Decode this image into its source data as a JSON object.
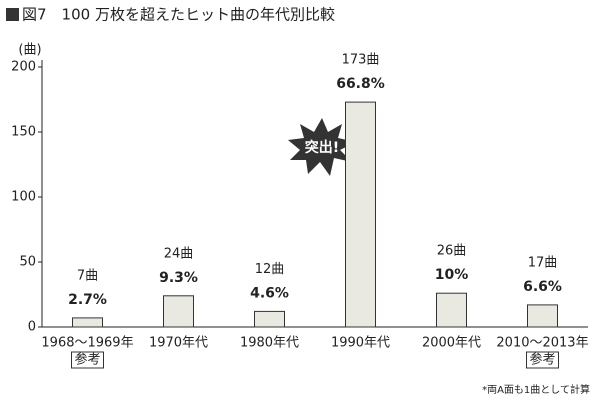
{
  "chart_data": {
    "type": "bar",
    "title": "図7　100 万枚を超えたヒット曲の年代別比較",
    "y_label": "(曲)",
    "categories": [
      "1968〜1969年",
      "1970年代",
      "1980年代",
      "1990年代",
      "2000年代",
      "2010〜2013年"
    ],
    "category_notes": [
      "参考",
      null,
      null,
      null,
      null,
      "参考"
    ],
    "values": [
      7,
      24,
      12,
      173,
      26,
      17
    ],
    "value_labels": [
      "7曲",
      "24曲",
      "12曲",
      "173曲",
      "26曲",
      "17曲"
    ],
    "percent_labels": [
      "2.7%",
      "9.3%",
      "4.6%",
      "66.8%",
      "10%",
      "6.6%"
    ],
    "color": "#e9e9e2",
    "ylim": [
      0,
      200
    ],
    "yticks": [
      0,
      50,
      100,
      150,
      200
    ],
    "grid": false,
    "annotation": "突出!",
    "footnote": "*両A面も1曲として計算"
  }
}
